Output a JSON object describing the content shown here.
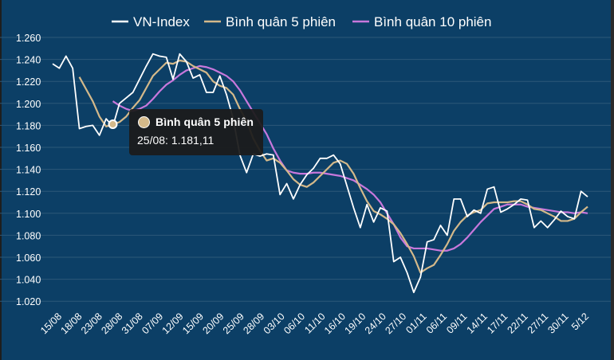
{
  "colors": {
    "background": "#0c3f66",
    "grid": "#2c5878",
    "vnindex": "#ffffff",
    "ma5": "#d4b98a",
    "ma10": "#c878dc",
    "text": "#ffffff"
  },
  "chart_data": {
    "type": "line",
    "title": "",
    "xlabel": "",
    "ylabel": "",
    "ylim": [
      1010,
      1260
    ],
    "yticks": [
      1020,
      1040,
      1060,
      1080,
      1100,
      1120,
      1140,
      1160,
      1180,
      1200,
      1220,
      1240,
      1260
    ],
    "ytick_labels": [
      "1.020",
      "1.040",
      "1.060",
      "1.080",
      "1.100",
      "1.120",
      "1.140",
      "1.160",
      "1.180",
      "1.200",
      "1.220",
      "1.240",
      "1.260"
    ],
    "xtick_labels": [
      "15/08",
      "18/08",
      "23/08",
      "28/08",
      "31/08",
      "07/09",
      "12/09",
      "15/09",
      "20/09",
      "25/09",
      "28/09",
      "03/10",
      "06/10",
      "11/10",
      "16/10",
      "19/10",
      "24/10",
      "27/10",
      "01/11",
      "06/11",
      "09/11",
      "14/11",
      "17/11",
      "22/11",
      "27/11",
      "30/11",
      "5/12"
    ],
    "legend_position": "top-center",
    "grid": true,
    "series": [
      {
        "name": "VN-Index",
        "values": [
          1236,
          1232,
          1243,
          1232,
          1177,
          1179,
          1180,
          1171,
          1186,
          1179,
          1200,
          1205,
          1210,
          1222,
          1234,
          1245,
          1243,
          1242,
          1222,
          1245,
          1238,
          1223,
          1226,
          1210,
          1210,
          1225,
          1208,
          1186,
          1153,
          1137,
          1154,
          1152,
          1154,
          1153,
          1117,
          1127,
          1113,
          1126,
          1135,
          1141,
          1150,
          1150,
          1153,
          1145,
          1125,
          1105,
          1087,
          1108,
          1092,
          1105,
          1102,
          1056,
          1060,
          1046,
          1028,
          1042,
          1074,
          1076,
          1089,
          1080,
          1113,
          1113,
          1097,
          1103,
          1100,
          1122,
          1124,
          1101,
          1104,
          1108,
          1113,
          1112,
          1087,
          1093,
          1087,
          1094,
          1102,
          1097,
          1095,
          1120,
          1115
        ]
      },
      {
        "name": "Bình quân 5 phiên",
        "values": [
          null,
          null,
          null,
          null,
          1224,
          1213,
          1202,
          1188,
          1179,
          1181,
          1183,
          1188,
          1196,
          1203,
          1214,
          1225,
          1231,
          1237,
          1236,
          1239,
          1238,
          1234,
          1231,
          1228,
          1220,
          1216,
          1214,
          1208,
          1195,
          1184,
          1168,
          1157,
          1148,
          1150,
          1146,
          1139,
          1131,
          1126,
          1124,
          1128,
          1134,
          1140,
          1146,
          1148,
          1145,
          1136,
          1123,
          1111,
          1102,
          1099,
          1095,
          1090,
          1082,
          1072,
          1061,
          1046,
          1050,
          1053,
          1062,
          1072,
          1084,
          1092,
          1098,
          1101,
          1103,
          1109,
          1110,
          1110,
          1110,
          1111,
          1111,
          1108,
          1104,
          1103,
          1100,
          1097,
          1093,
          1093,
          1095,
          1101,
          1106
        ]
      },
      {
        "name": "Bình quân 10 phiên",
        "values": [
          null,
          null,
          null,
          null,
          null,
          null,
          null,
          null,
          null,
          1202,
          1198,
          1195,
          1193,
          1195,
          1198,
          1204,
          1211,
          1217,
          1221,
          1226,
          1230,
          1232,
          1234,
          1233,
          1231,
          1228,
          1225,
          1220,
          1212,
          1202,
          1192,
          1182,
          1172,
          1159,
          1148,
          1139,
          1137,
          1136,
          1136,
          1137,
          1137,
          1136,
          1135,
          1134,
          1132,
          1130,
          1126,
          1122,
          1117,
          1110,
          1100,
          1090,
          1078,
          1070,
          1068,
          1068,
          1068,
          1067,
          1066,
          1066,
          1068,
          1072,
          1078,
          1085,
          1092,
          1098,
          1104,
          1106,
          1108,
          1108,
          1108,
          1106,
          1105,
          1104,
          1103,
          1102,
          1101,
          1101,
          1100,
          1101,
          1100
        ]
      }
    ],
    "tooltip": {
      "series": "Bình quân 5 phiên",
      "label": "25/08: 1.181,11",
      "index": 9
    }
  }
}
